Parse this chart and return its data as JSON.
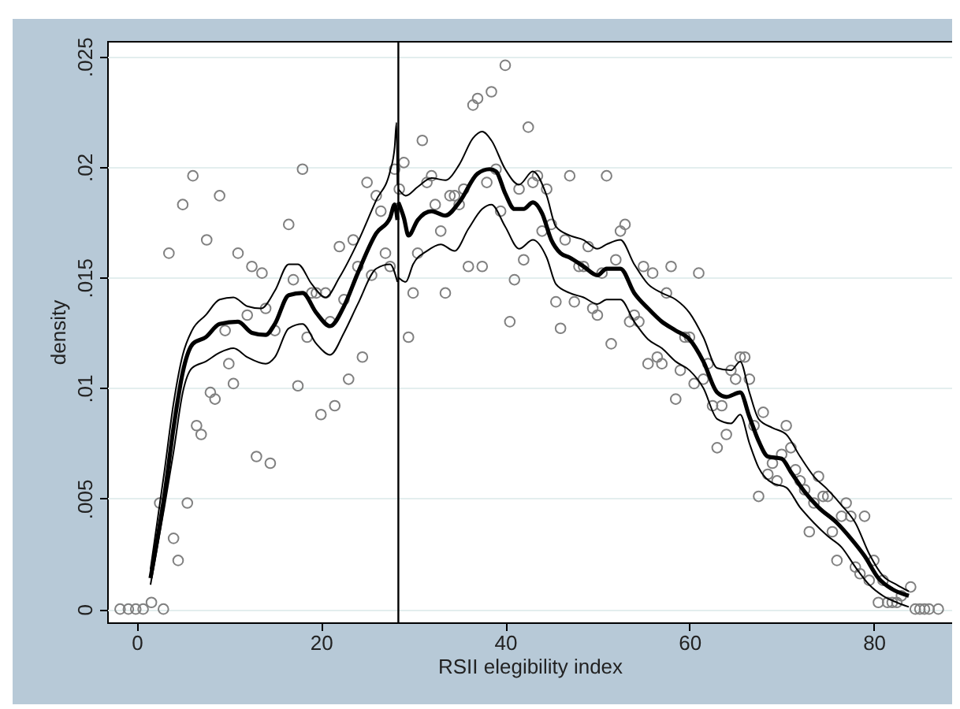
{
  "chart_data": {
    "type": "line",
    "xlabel": "RSII elegibility index",
    "ylabel": "density",
    "xlim": [
      -3.2,
      88.5
    ],
    "ylim": [
      -0.0006,
      0.0257
    ],
    "xticks": [
      0,
      20,
      40,
      60,
      80
    ],
    "yticks": [
      {
        "value": 0,
        "label": "0"
      },
      {
        "value": 0.005,
        "label": ".005"
      },
      {
        "value": 0.01,
        "label": ".01"
      },
      {
        "value": 0.015,
        "label": ".015"
      },
      {
        "value": 0.02,
        "label": ".02"
      },
      {
        "value": 0.025,
        "label": ".025"
      }
    ],
    "grid": "y",
    "ref_lines": [
      {
        "axis": "x",
        "value": 28.4,
        "color": "#000000"
      }
    ],
    "series": [
      {
        "type": "scatter",
        "marker": "circle",
        "color": "#808080",
        "x": [
          -1.8,
          -0.9,
          -0.1,
          0.7,
          1.6,
          2.9,
          2.5,
          3.5,
          4.0,
          4.5,
          5.0,
          5.5,
          6.1,
          6.5,
          7.0,
          7.6,
          8.0,
          8.5,
          9.0,
          9.6,
          10.0,
          10.5,
          11.0,
          12.0,
          12.5,
          13.0,
          13.6,
          14.0,
          14.5,
          15.0,
          16.5,
          17.0,
          17.5,
          18.0,
          18.5,
          19.0,
          19.5,
          20.0,
          20.5,
          21.0,
          21.5,
          22.0,
          22.5,
          23.0,
          23.5,
          24.0,
          24.5,
          25.0,
          25.5,
          26.0,
          26.5,
          27.0,
          27.5,
          28.0,
          28.5,
          29.0,
          29.5,
          30.0,
          30.5,
          31.0,
          31.5,
          32.0,
          32.4,
          33.0,
          33.5,
          34.0,
          34.5,
          35.0,
          35.5,
          36.0,
          36.5,
          37.0,
          37.5,
          38.0,
          38.5,
          39.0,
          39.5,
          40.0,
          40.5,
          41.0,
          41.5,
          42.0,
          42.5,
          43.0,
          43.5,
          44.0,
          44.5,
          45.0,
          45.5,
          46.0,
          46.5,
          47.0,
          47.5,
          48.0,
          48.5,
          49.0,
          49.5,
          50.0,
          50.5,
          51.0,
          51.5,
          52.0,
          52.5,
          53.0,
          53.5,
          54.0,
          54.5,
          55.0,
          55.5,
          56.0,
          56.5,
          57.0,
          57.5,
          58.0,
          58.5,
          59.0,
          59.5,
          60.0,
          60.5,
          61.0,
          61.5,
          62.0,
          62.5,
          63.0,
          63.5,
          64.0,
          64.5,
          65.0,
          65.5,
          66.0,
          66.5,
          67.0,
          67.5,
          68.0,
          68.5,
          69.0,
          69.5,
          70.0,
          70.5,
          71.0,
          71.5,
          72.0,
          72.5,
          73.0,
          73.5,
          74.0,
          74.5,
          75.0,
          75.5,
          76.0,
          76.5,
          77.0,
          77.5,
          78.0,
          78.5,
          79.0,
          79.5,
          80.0,
          80.5,
          81.0,
          81.5,
          82.0,
          82.5,
          83.0,
          84.0,
          84.5,
          85.0,
          85.5,
          86.0,
          87.0
        ],
        "values": [
          0,
          0,
          0,
          0,
          0.0003,
          0,
          0.0048,
          0.0161,
          0.0032,
          0.0022,
          0.0183,
          0.0048,
          0.0196,
          0.0083,
          0.0079,
          0.0167,
          0.0098,
          0.0095,
          0.0187,
          0.0126,
          0.0111,
          0.0102,
          0.0161,
          0.0133,
          0.0155,
          0.0069,
          0.0152,
          0.0136,
          0.0066,
          0.0126,
          0.0174,
          0.0149,
          0.0101,
          0.0199,
          0.0123,
          0.0143,
          0.0143,
          0.0088,
          0.0143,
          0.013,
          0.0092,
          0.0164,
          0.014,
          0.0104,
          0.0167,
          0.0155,
          0.0114,
          0.0193,
          0.0151,
          0.0187,
          0.018,
          0.0161,
          0.0155,
          0.0199,
          0.019,
          0.0202,
          0.0123,
          0.0143,
          0.0161,
          0.0212,
          0.0193,
          0.0196,
          0.0183,
          0.0171,
          0.0143,
          0.0187,
          0.0187,
          0.0183,
          0.019,
          0.0155,
          0.0228,
          0.0231,
          0.0155,
          0.0193,
          0.0234,
          0.0199,
          0.018,
          0.0246,
          0.013,
          0.0149,
          0.019,
          0.0158,
          0.0218,
          0.0193,
          0.0196,
          0.0171,
          0.019,
          0.0174,
          0.0139,
          0.0127,
          0.0167,
          0.0196,
          0.0139,
          0.0155,
          0.0155,
          0.0164,
          0.0136,
          0.0133,
          0.0152,
          0.0196,
          0.012,
          0.0158,
          0.0171,
          0.0174,
          0.013,
          0.0133,
          0.013,
          0.0155,
          0.0111,
          0.0152,
          0.0114,
          0.0111,
          0.0143,
          0.0155,
          0.0095,
          0.0108,
          0.0123,
          0.0123,
          0.0102,
          0.0152,
          0.0104,
          0.0111,
          0.0092,
          0.0073,
          0.0092,
          0.0079,
          0.0108,
          0.0104,
          0.0114,
          0.0114,
          0.0104,
          0.0083,
          0.0051,
          0.0089,
          0.0061,
          0.0066,
          0.0058,
          0.007,
          0.0083,
          0.0073,
          0.0063,
          0.0058,
          0.0054,
          0.0035,
          0.0048,
          0.006,
          0.0051,
          0.0051,
          0.0035,
          0.0022,
          0.0042,
          0.0048,
          0.0042,
          0.0019,
          0.0016,
          0.0042,
          0.0013,
          0.0022,
          0.0003,
          0.0013,
          0.0003,
          0.0003,
          0.0003,
          0.0006,
          0.001,
          0,
          0,
          0,
          0,
          0
        ]
      },
      {
        "color": "#000000",
        "x": [
          1.5,
          3,
          4,
          5,
          6,
          7.5,
          9,
          10.5,
          12,
          13.5,
          15,
          16.5,
          17.5,
          19,
          20.5,
          22,
          24,
          26,
          27.5,
          28,
          28.2,
          28.3
        ],
        "values": [
          0.0018,
          0.0062,
          0.0093,
          0.0115,
          0.0126,
          0.0133,
          0.014,
          0.0141,
          0.0137,
          0.0136,
          0.0144,
          0.0156,
          0.0156,
          0.0147,
          0.0141,
          0.015,
          0.0166,
          0.0185,
          0.0198,
          0.0209,
          0.022,
          0.0192
        ]
      },
      {
        "color": "#000000",
        "x": [
          1.5,
          3.1,
          4,
          5.1,
          6.1,
          7.5,
          9,
          11,
          12.5,
          14,
          15,
          16.5,
          18,
          19.5,
          21,
          22.5,
          24,
          26,
          27.5,
          28,
          28.3
        ],
        "values": [
          0.0014,
          0.0054,
          0.0082,
          0.0109,
          0.012,
          0.0123,
          0.0129,
          0.013,
          0.0125,
          0.0124,
          0.0129,
          0.0142,
          0.0143,
          0.0134,
          0.0128,
          0.0137,
          0.0152,
          0.017,
          0.0177,
          0.0183,
          0.0176
        ]
      },
      {
        "color": "#000000",
        "x": [
          1.5,
          3,
          4,
          5,
          6,
          7.5,
          9,
          10.5,
          12,
          14,
          15,
          16.5,
          18,
          19.5,
          21,
          22.5,
          24,
          26,
          27.5,
          28.3
        ],
        "values": [
          0.0011,
          0.0046,
          0.0071,
          0.0098,
          0.0109,
          0.0112,
          0.0116,
          0.0118,
          0.0114,
          0.0111,
          0.0114,
          0.0127,
          0.0129,
          0.012,
          0.0115,
          0.0125,
          0.0138,
          0.0154,
          0.0156,
          0.0148
        ]
      },
      {
        "color": "#000000",
        "x": [
          28.4,
          29.2,
          30.5,
          32,
          33.5,
          35,
          36.5,
          37.5,
          38.5,
          40,
          41.5,
          43,
          44.5,
          45.5,
          47,
          48.5,
          50,
          51,
          52.5,
          54,
          55.5,
          57,
          58.5,
          60,
          61.5,
          63,
          64.5,
          65.5,
          66.5,
          67.5,
          69,
          70.5,
          72,
          73.5,
          75,
          76.5,
          78,
          79.5,
          81,
          82.5,
          83.8
        ],
        "values": [
          0.019,
          0.0187,
          0.0191,
          0.0195,
          0.0194,
          0.0201,
          0.0213,
          0.0216,
          0.0212,
          0.0199,
          0.0192,
          0.0198,
          0.0187,
          0.0173,
          0.0169,
          0.0167,
          0.0163,
          0.0165,
          0.0167,
          0.0156,
          0.0147,
          0.0143,
          0.014,
          0.0134,
          0.0123,
          0.0109,
          0.0108,
          0.0112,
          0.0098,
          0.0086,
          0.0082,
          0.0079,
          0.0069,
          0.006,
          0.0054,
          0.0047,
          0.0039,
          0.0025,
          0.0015,
          0.0011,
          0.0008
        ]
      },
      {
        "color": "#000000",
        "x": [
          28.4,
          29,
          29.5,
          30.5,
          32,
          33.5,
          35,
          37,
          38.3,
          39,
          40,
          41,
          42,
          43,
          44,
          45,
          46,
          47,
          48.5,
          50,
          51,
          52.5,
          54,
          55.5,
          57,
          58.5,
          60,
          61.5,
          63,
          64,
          65.5,
          66.5,
          67.5,
          68.5,
          70,
          71,
          72.5,
          74,
          76,
          77.5,
          79,
          80.5,
          82,
          83.8
        ],
        "values": [
          0.0184,
          0.0177,
          0.0169,
          0.0176,
          0.018,
          0.0178,
          0.0184,
          0.0197,
          0.0199,
          0.0198,
          0.0188,
          0.0181,
          0.0181,
          0.0184,
          0.0179,
          0.0167,
          0.0161,
          0.0159,
          0.0155,
          0.0151,
          0.0154,
          0.0154,
          0.0143,
          0.0136,
          0.013,
          0.0126,
          0.0122,
          0.0112,
          0.0098,
          0.0096,
          0.0098,
          0.0087,
          0.0076,
          0.0069,
          0.0068,
          0.0062,
          0.0053,
          0.0046,
          0.0039,
          0.0032,
          0.0024,
          0.0014,
          0.0009,
          0.0006
        ]
      },
      {
        "color": "#000000",
        "x": [
          28.4,
          29.2,
          30,
          31.5,
          33,
          34.5,
          36,
          37.5,
          38.5,
          40,
          41.5,
          43,
          44.5,
          45.5,
          47,
          48.5,
          50,
          51,
          52.5,
          54,
          55.5,
          57,
          58.5,
          60,
          61.5,
          63,
          64.5,
          65.5,
          66.5,
          67.5,
          69,
          70.5,
          72,
          73.5,
          75,
          76.5,
          78,
          79.5,
          81,
          82.5,
          83.8
        ],
        "values": [
          0.015,
          0.0148,
          0.0156,
          0.0162,
          0.0165,
          0.0162,
          0.0172,
          0.0181,
          0.0183,
          0.0173,
          0.0163,
          0.0167,
          0.0159,
          0.0147,
          0.0143,
          0.0141,
          0.0138,
          0.014,
          0.014,
          0.013,
          0.0122,
          0.0118,
          0.0112,
          0.0108,
          0.01,
          0.0086,
          0.0084,
          0.0088,
          0.0075,
          0.0064,
          0.0057,
          0.0055,
          0.0046,
          0.0039,
          0.0033,
          0.0028,
          0.0019,
          0.0011,
          0.0006,
          0.0003,
          0.0001
        ]
      }
    ]
  }
}
